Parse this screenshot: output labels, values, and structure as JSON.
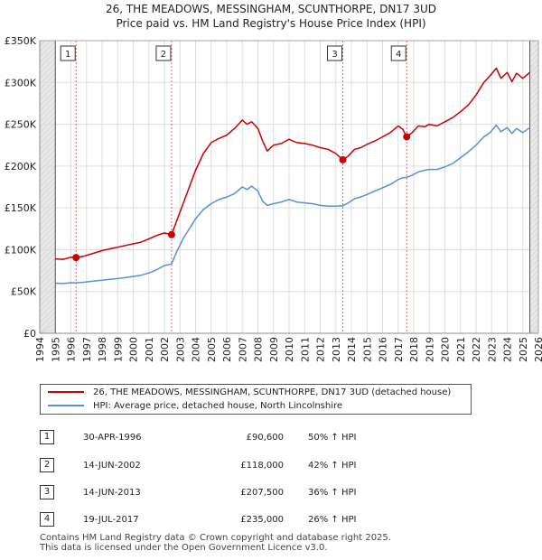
{
  "title": {
    "line1": "26, THE MEADOWS, MESSINGHAM, SCUNTHORPE, DN17 3UD",
    "line2": "Price paid vs. HM Land Registry's House Price Index (HPI)"
  },
  "chart_data": {
    "type": "line",
    "title": "26, THE MEADOWS, MESSINGHAM, SCUNTHORPE, DN17 3UD — Price paid vs. HM Land Registry's House Price Index (HPI)",
    "xlim": [
      1994,
      2026
    ],
    "ylim": [
      0,
      350000
    ],
    "y_ticks": [
      0,
      50000,
      100000,
      150000,
      200000,
      250000,
      300000,
      350000
    ],
    "y_tick_labels": [
      "£0",
      "£50K",
      "£100K",
      "£150K",
      "£200K",
      "£250K",
      "£300K",
      "£350K"
    ],
    "x_ticks": [
      1994,
      1995,
      1996,
      1997,
      1998,
      1999,
      2000,
      2001,
      2002,
      2003,
      2004,
      2005,
      2006,
      2007,
      2008,
      2009,
      2010,
      2011,
      2012,
      2013,
      2014,
      2015,
      2016,
      2017,
      2018,
      2019,
      2020,
      2021,
      2022,
      2023,
      2024,
      2025,
      2026
    ],
    "grid": true,
    "data_start": 1995.0,
    "data_end": 2025.45,
    "series": [
      {
        "name": "26, THE MEADOWS, MESSINGHAM, SCUNTHORPE, DN17 3UD (detached house)",
        "color": "#cc0000",
        "x": [
          1995.0,
          1995.5,
          1996.0,
          1996.33,
          1996.8,
          1997.5,
          1998.0,
          1998.5,
          1999.0,
          1999.5,
          2000.0,
          2000.5,
          2001.0,
          2001.5,
          2002.0,
          2002.46,
          2002.8,
          2003.2,
          2003.6,
          2004.0,
          2004.5,
          2005.0,
          2005.5,
          2006.0,
          2006.5,
          2007.0,
          2007.3,
          2007.6,
          2008.0,
          2008.3,
          2008.6,
          2009.0,
          2009.5,
          2010.0,
          2010.5,
          2011.0,
          2011.5,
          2012.0,
          2012.5,
          2013.0,
          2013.45,
          2013.8,
          2014.2,
          2014.6,
          2015.0,
          2015.5,
          2016.0,
          2016.5,
          2017.0,
          2017.3,
          2017.55,
          2017.9,
          2018.3,
          2018.7,
          2019.0,
          2019.5,
          2020.0,
          2020.5,
          2021.0,
          2021.5,
          2022.0,
          2022.5,
          2022.9,
          2023.3,
          2023.6,
          2024.0,
          2024.3,
          2024.6,
          2025.0,
          2025.45
        ],
        "values": [
          89000,
          88500,
          91000,
          90600,
          92000,
          96000,
          99000,
          101000,
          103000,
          105000,
          107000,
          109000,
          113000,
          117000,
          120000,
          118000,
          135000,
          155000,
          175000,
          195000,
          215000,
          228000,
          233000,
          237000,
          245000,
          255000,
          250000,
          253000,
          245000,
          230000,
          218000,
          225000,
          227000,
          232000,
          228000,
          227000,
          225000,
          222000,
          220000,
          215000,
          207500,
          212000,
          220000,
          222000,
          226000,
          230000,
          235000,
          240000,
          248000,
          244000,
          235000,
          240000,
          248000,
          247000,
          250000,
          248000,
          253000,
          258000,
          265000,
          273000,
          285000,
          300000,
          308000,
          317000,
          305000,
          312000,
          301000,
          311000,
          305000,
          312000
        ]
      },
      {
        "name": "HPI: Average price, detached house, North Lincolnshire",
        "color": "#5b8fd4",
        "x": [
          1995.0,
          1995.5,
          1996.0,
          1996.33,
          1996.8,
          1997.5,
          1998.0,
          1998.5,
          1999.0,
          1999.5,
          2000.0,
          2000.5,
          2001.0,
          2001.5,
          2002.0,
          2002.46,
          2002.8,
          2003.2,
          2003.6,
          2004.0,
          2004.5,
          2005.0,
          2005.5,
          2006.0,
          2006.5,
          2007.0,
          2007.3,
          2007.6,
          2008.0,
          2008.3,
          2008.6,
          2009.0,
          2009.5,
          2010.0,
          2010.5,
          2011.0,
          2011.5,
          2012.0,
          2012.5,
          2013.0,
          2013.45,
          2013.8,
          2014.2,
          2014.6,
          2015.0,
          2015.5,
          2016.0,
          2016.5,
          2017.0,
          2017.3,
          2017.55,
          2017.9,
          2018.3,
          2018.7,
          2019.0,
          2019.5,
          2020.0,
          2020.5,
          2021.0,
          2021.5,
          2022.0,
          2022.5,
          2022.9,
          2023.3,
          2023.6,
          2024.0,
          2024.3,
          2024.6,
          2025.0,
          2025.45
        ],
        "values": [
          60000,
          59500,
          60500,
          60400,
          61000,
          62500,
          63500,
          64500,
          65500,
          66500,
          68000,
          69500,
          72000,
          76000,
          81000,
          83000,
          98000,
          113000,
          125000,
          137000,
          148000,
          155000,
          160000,
          163000,
          167000,
          175000,
          172000,
          176000,
          170000,
          158000,
          153000,
          155000,
          157000,
          160000,
          157000,
          156000,
          155000,
          153000,
          152000,
          152000,
          152500,
          156000,
          161000,
          163000,
          166000,
          170000,
          174000,
          178000,
          184000,
          186000,
          186500,
          189000,
          193000,
          195000,
          196000,
          196000,
          199000,
          203000,
          210000,
          217000,
          225000,
          235000,
          240000,
          249000,
          241000,
          246000,
          239000,
          245000,
          240000,
          246000
        ]
      }
    ],
    "sales": [
      {
        "id": "1",
        "x": 1996.33,
        "price": 90600
      },
      {
        "id": "2",
        "x": 2002.46,
        "price": 118000
      },
      {
        "id": "3",
        "x": 2013.45,
        "price": 207500
      },
      {
        "id": "4",
        "x": 2017.55,
        "price": 235000
      }
    ]
  },
  "legend": {
    "property_label": "26, THE MEADOWS, MESSINGHAM, SCUNTHORPE, DN17 3UD (detached house)",
    "hpi_label": "HPI: Average price, detached house, North Lincolnshire",
    "property_color": "#cc0000",
    "hpi_color": "#5b8fd4"
  },
  "sales_table": [
    {
      "num": "1",
      "date": "30-APR-1996",
      "price": "£90,600",
      "hpi": "50% ↑ HPI"
    },
    {
      "num": "2",
      "date": "14-JUN-2002",
      "price": "£118,000",
      "hpi": "42% ↑ HPI"
    },
    {
      "num": "3",
      "date": "14-JUN-2013",
      "price": "£207,500",
      "hpi": "36% ↑ HPI"
    },
    {
      "num": "4",
      "date": "19-JUL-2017",
      "price": "£235,000",
      "hpi": "26% ↑ HPI"
    }
  ],
  "footer": {
    "line1": "Contains HM Land Registry data © Crown copyright and database right 2025.",
    "line2": "This data is licensed under the Open Government Licence v3.0."
  }
}
